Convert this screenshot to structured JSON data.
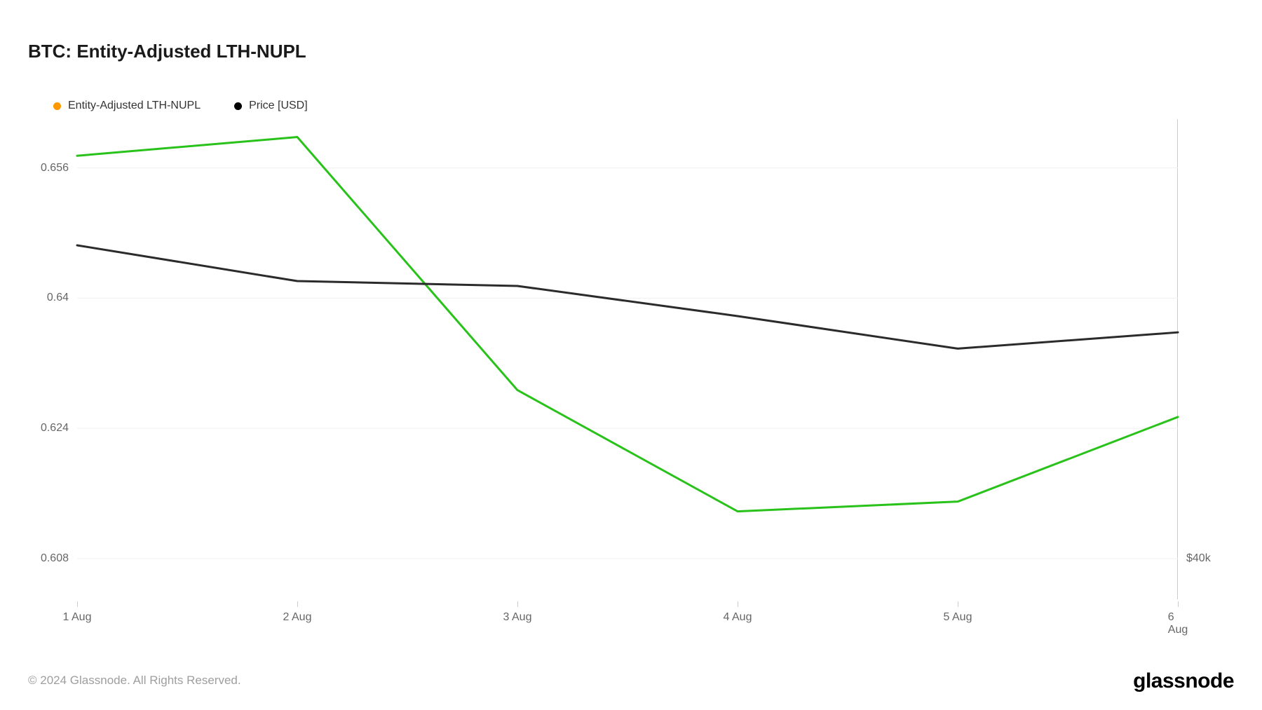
{
  "title": "BTC: Entity-Adjusted LTH-NUPL",
  "legend": {
    "series1": {
      "label": "Entity-Adjusted LTH-NUPL",
      "color": "#ff9800"
    },
    "series2": {
      "label": "Price [USD]",
      "color": "#000000"
    }
  },
  "chart": {
    "type": "line",
    "background_color": "#ffffff",
    "grid_color": "#f0f0f0",
    "axis_color": "#cccccc",
    "label_color": "#666666",
    "label_fontsize": 16,
    "x": {
      "categories": [
        "1 Aug",
        "2 Aug",
        "3 Aug",
        "4 Aug",
        "5 Aug",
        "6 Aug"
      ]
    },
    "y_left": {
      "min": 0.603,
      "max": 0.662,
      "ticks": [
        0.608,
        0.624,
        0.64,
        0.656
      ]
    },
    "y_right": {
      "ticks_labels": [
        "$40k"
      ],
      "ticks_pos_on_left_scale": [
        0.608
      ]
    },
    "series": {
      "nupl": {
        "color": "#29c21a",
        "line_width": 3,
        "values": [
          0.6575,
          0.6598,
          0.6287,
          0.6138,
          0.615,
          0.6254
        ]
      },
      "price": {
        "color": "#2b2b2b",
        "line_width": 3,
        "values": [
          0.6465,
          0.6421,
          0.6415,
          0.6378,
          0.6338,
          0.6358
        ]
      }
    }
  },
  "footer": {
    "copyright": "© 2024 Glassnode. All Rights Reserved.",
    "brand": "glassnode"
  }
}
